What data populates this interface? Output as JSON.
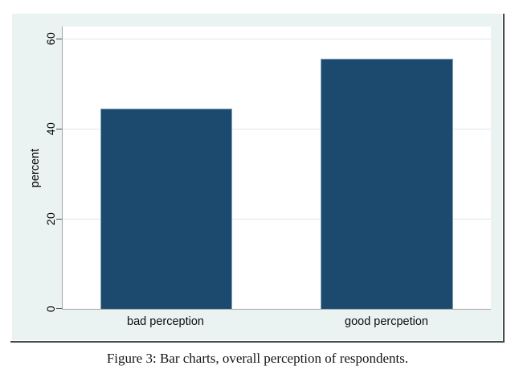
{
  "figure": {
    "caption": "Figure 3: Bar charts, overall perception of respondents."
  },
  "chart_data": {
    "type": "bar",
    "categories": [
      "bad perception",
      "good percpetion"
    ],
    "values": [
      44.4,
      55.6
    ],
    "title": "",
    "xlabel": "",
    "ylabel": "percent",
    "yticks": [
      0,
      20,
      40,
      60
    ],
    "ylim": [
      0,
      62.7
    ],
    "grid": "horizontal gridlines at y ticks",
    "legend": "none",
    "colors": {
      "bar_fill": "#1b4a6e",
      "bar_outline": "#87a3b8",
      "graph_background": "#eaf3f2",
      "plot_background": "#ffffff",
      "axis_line": "#a3a3a3",
      "gridline": "#dcebe9",
      "frame_line": "#474b4d"
    }
  }
}
